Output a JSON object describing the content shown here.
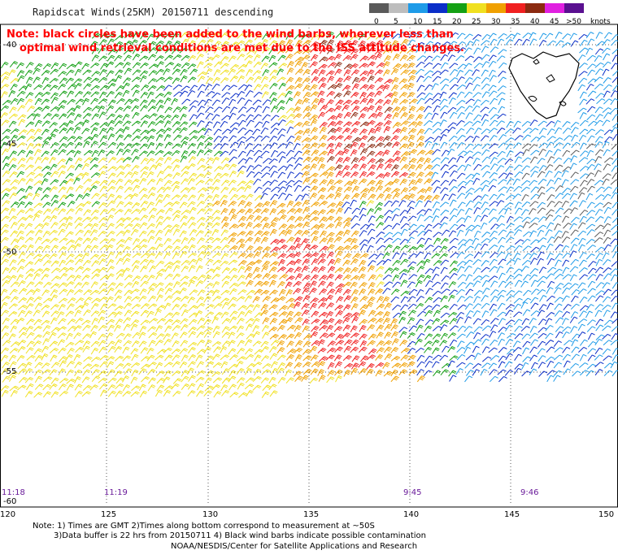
{
  "header": {
    "title": "Rapidscat Winds(25KM) 20150711 descending"
  },
  "note": {
    "line1": "Note: black circles have been added to the wind barbs, wherever less than",
    "line2": "optimal wind retrieval conditions are met due to the ISS attitude changes."
  },
  "legend": {
    "unit": "knots",
    "entries": [
      {
        "label": "0",
        "color": "#5a5a5a"
      },
      {
        "label": "5",
        "color": "#bdbdbd"
      },
      {
        "label": "10",
        "color": "#1e9be8"
      },
      {
        "label": "15",
        "color": "#0a2ec8"
      },
      {
        "label": "20",
        "color": "#14a014"
      },
      {
        "label": "25",
        "color": "#f0e020"
      },
      {
        "label": "30",
        "color": "#f0a000"
      },
      {
        "label": "35",
        "color": "#f02020"
      },
      {
        "label": "40",
        "color": "#8b2a10"
      },
      {
        "label": "45",
        "color": "#e020e0"
      },
      {
        "label": ">50",
        "color": "#5a1090"
      }
    ]
  },
  "axes": {
    "x_ticks": [
      "120",
      "125",
      "130",
      "135",
      "140",
      "145",
      "150"
    ],
    "y_ticks": [
      "-40",
      "-45",
      "-50",
      "-55",
      "-60"
    ]
  },
  "times": [
    {
      "label": "11:18"
    },
    {
      "label": "11:19"
    },
    {
      "label": "9:45"
    },
    {
      "label": "9:46"
    }
  ],
  "footer": {
    "line1": "Note: 1) Times are GMT 2)Times along bottom correspond to measurement at ~50S",
    "line2": "3)Data buffer is 22 hrs from 20150711 4) Black wind barbs indicate possible contamination",
    "line3": "NOAA/NESDIS/Center for Satellite Applications and Research"
  }
}
